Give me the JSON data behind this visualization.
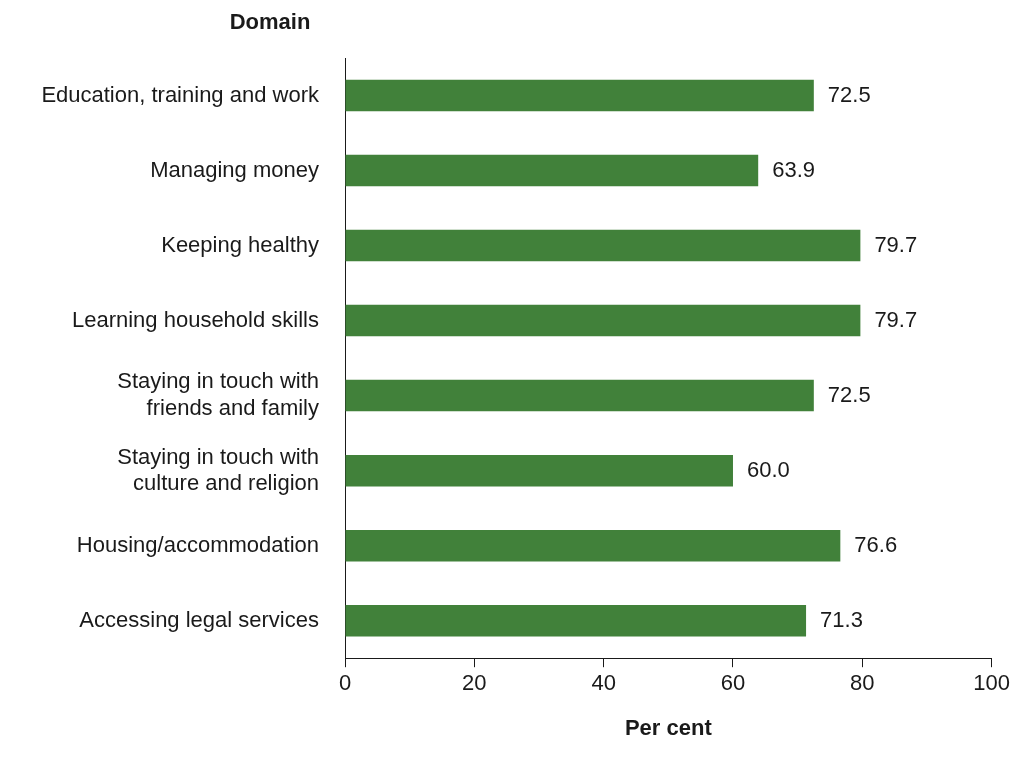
{
  "chart_data": {
    "type": "bar",
    "orientation": "horizontal",
    "ylabel": "Domain",
    "xlabel": "Per cent",
    "categories": [
      "Education, training and work",
      "Managing money",
      "Keeping healthy",
      "Learning household skills",
      "Staying in touch with friends and family",
      "Staying in touch with culture and religion",
      "Housing/accommodation",
      "Accessing legal services"
    ],
    "values": [
      72.5,
      63.9,
      79.7,
      79.7,
      72.5,
      60.0,
      76.6,
      71.3
    ],
    "value_labels": [
      "72.5",
      "63.9",
      "79.7",
      "79.7",
      "72.5",
      "60.0",
      "76.6",
      "71.3"
    ],
    "color": "#41813a",
    "xlim": [
      0,
      100
    ],
    "xticks": [
      0,
      20,
      40,
      60,
      80,
      100
    ],
    "grid": false,
    "legend": false
  }
}
